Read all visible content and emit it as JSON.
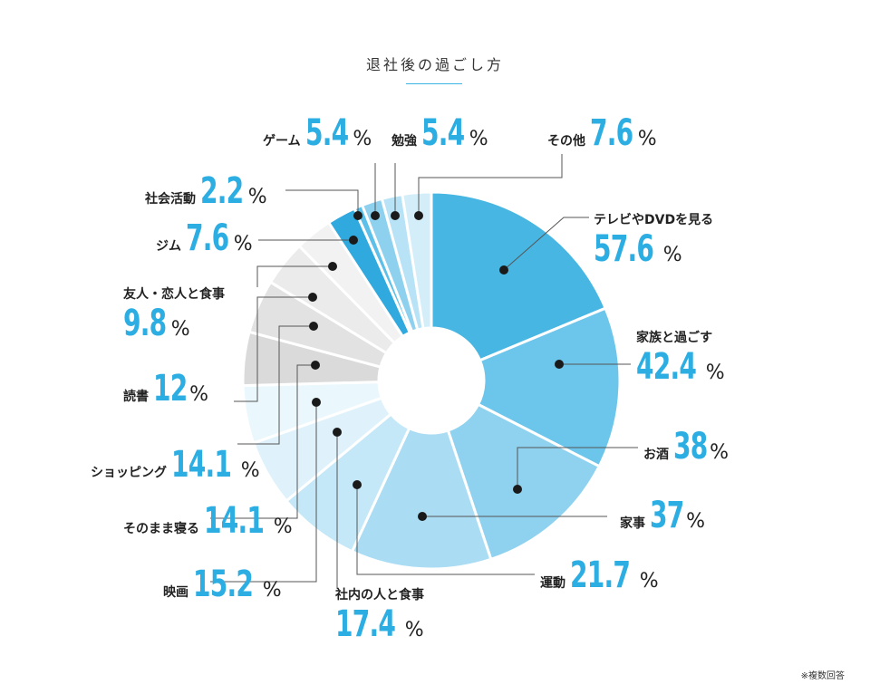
{
  "title": "退社後の過ごし方",
  "note": "※複数回答",
  "unit": "%",
  "chart_data": {
    "type": "pie",
    "title": "退社後の過ごし方",
    "categories": [
      "テレビやDVDを見る",
      "家族と過ごす",
      "お酒",
      "家事",
      "運動",
      "社内の人と食事",
      "映画",
      "そのまま寝る",
      "ショッピング",
      "読書",
      "友人・恋人と食事",
      "ジム",
      "社会活動",
      "ゲーム",
      "勉強",
      "その他"
    ],
    "values": [
      57.6,
      42.4,
      38,
      37,
      21.7,
      17.4,
      15.2,
      14.1,
      14.1,
      12,
      9.8,
      7.6,
      2.2,
      5.4,
      5.4,
      7.6
    ],
    "value_labels": [
      "57.6",
      "42.4",
      "38",
      "37",
      "21.7",
      "17.4",
      "15.2",
      "14.1",
      "14.1",
      "12",
      "9.8",
      "7.6",
      "2.2",
      "5.4",
      "5.4",
      "7.6"
    ],
    "colors": [
      "#48b6e2",
      "#6cc5ea",
      "#8fd3f0",
      "#a8dcf2",
      "#bfe6f6",
      "#d2eef9",
      "#e4f4fb",
      "#eef8fc",
      "#d9d9d9",
      "#e3e3e3",
      "#ececec",
      "#f3f3f3",
      "#2fa6dc",
      "#4dbbe6",
      "#83cfef",
      "#bfe5f6",
      "#d2ecf8"
    ],
    "legend": "none"
  }
}
